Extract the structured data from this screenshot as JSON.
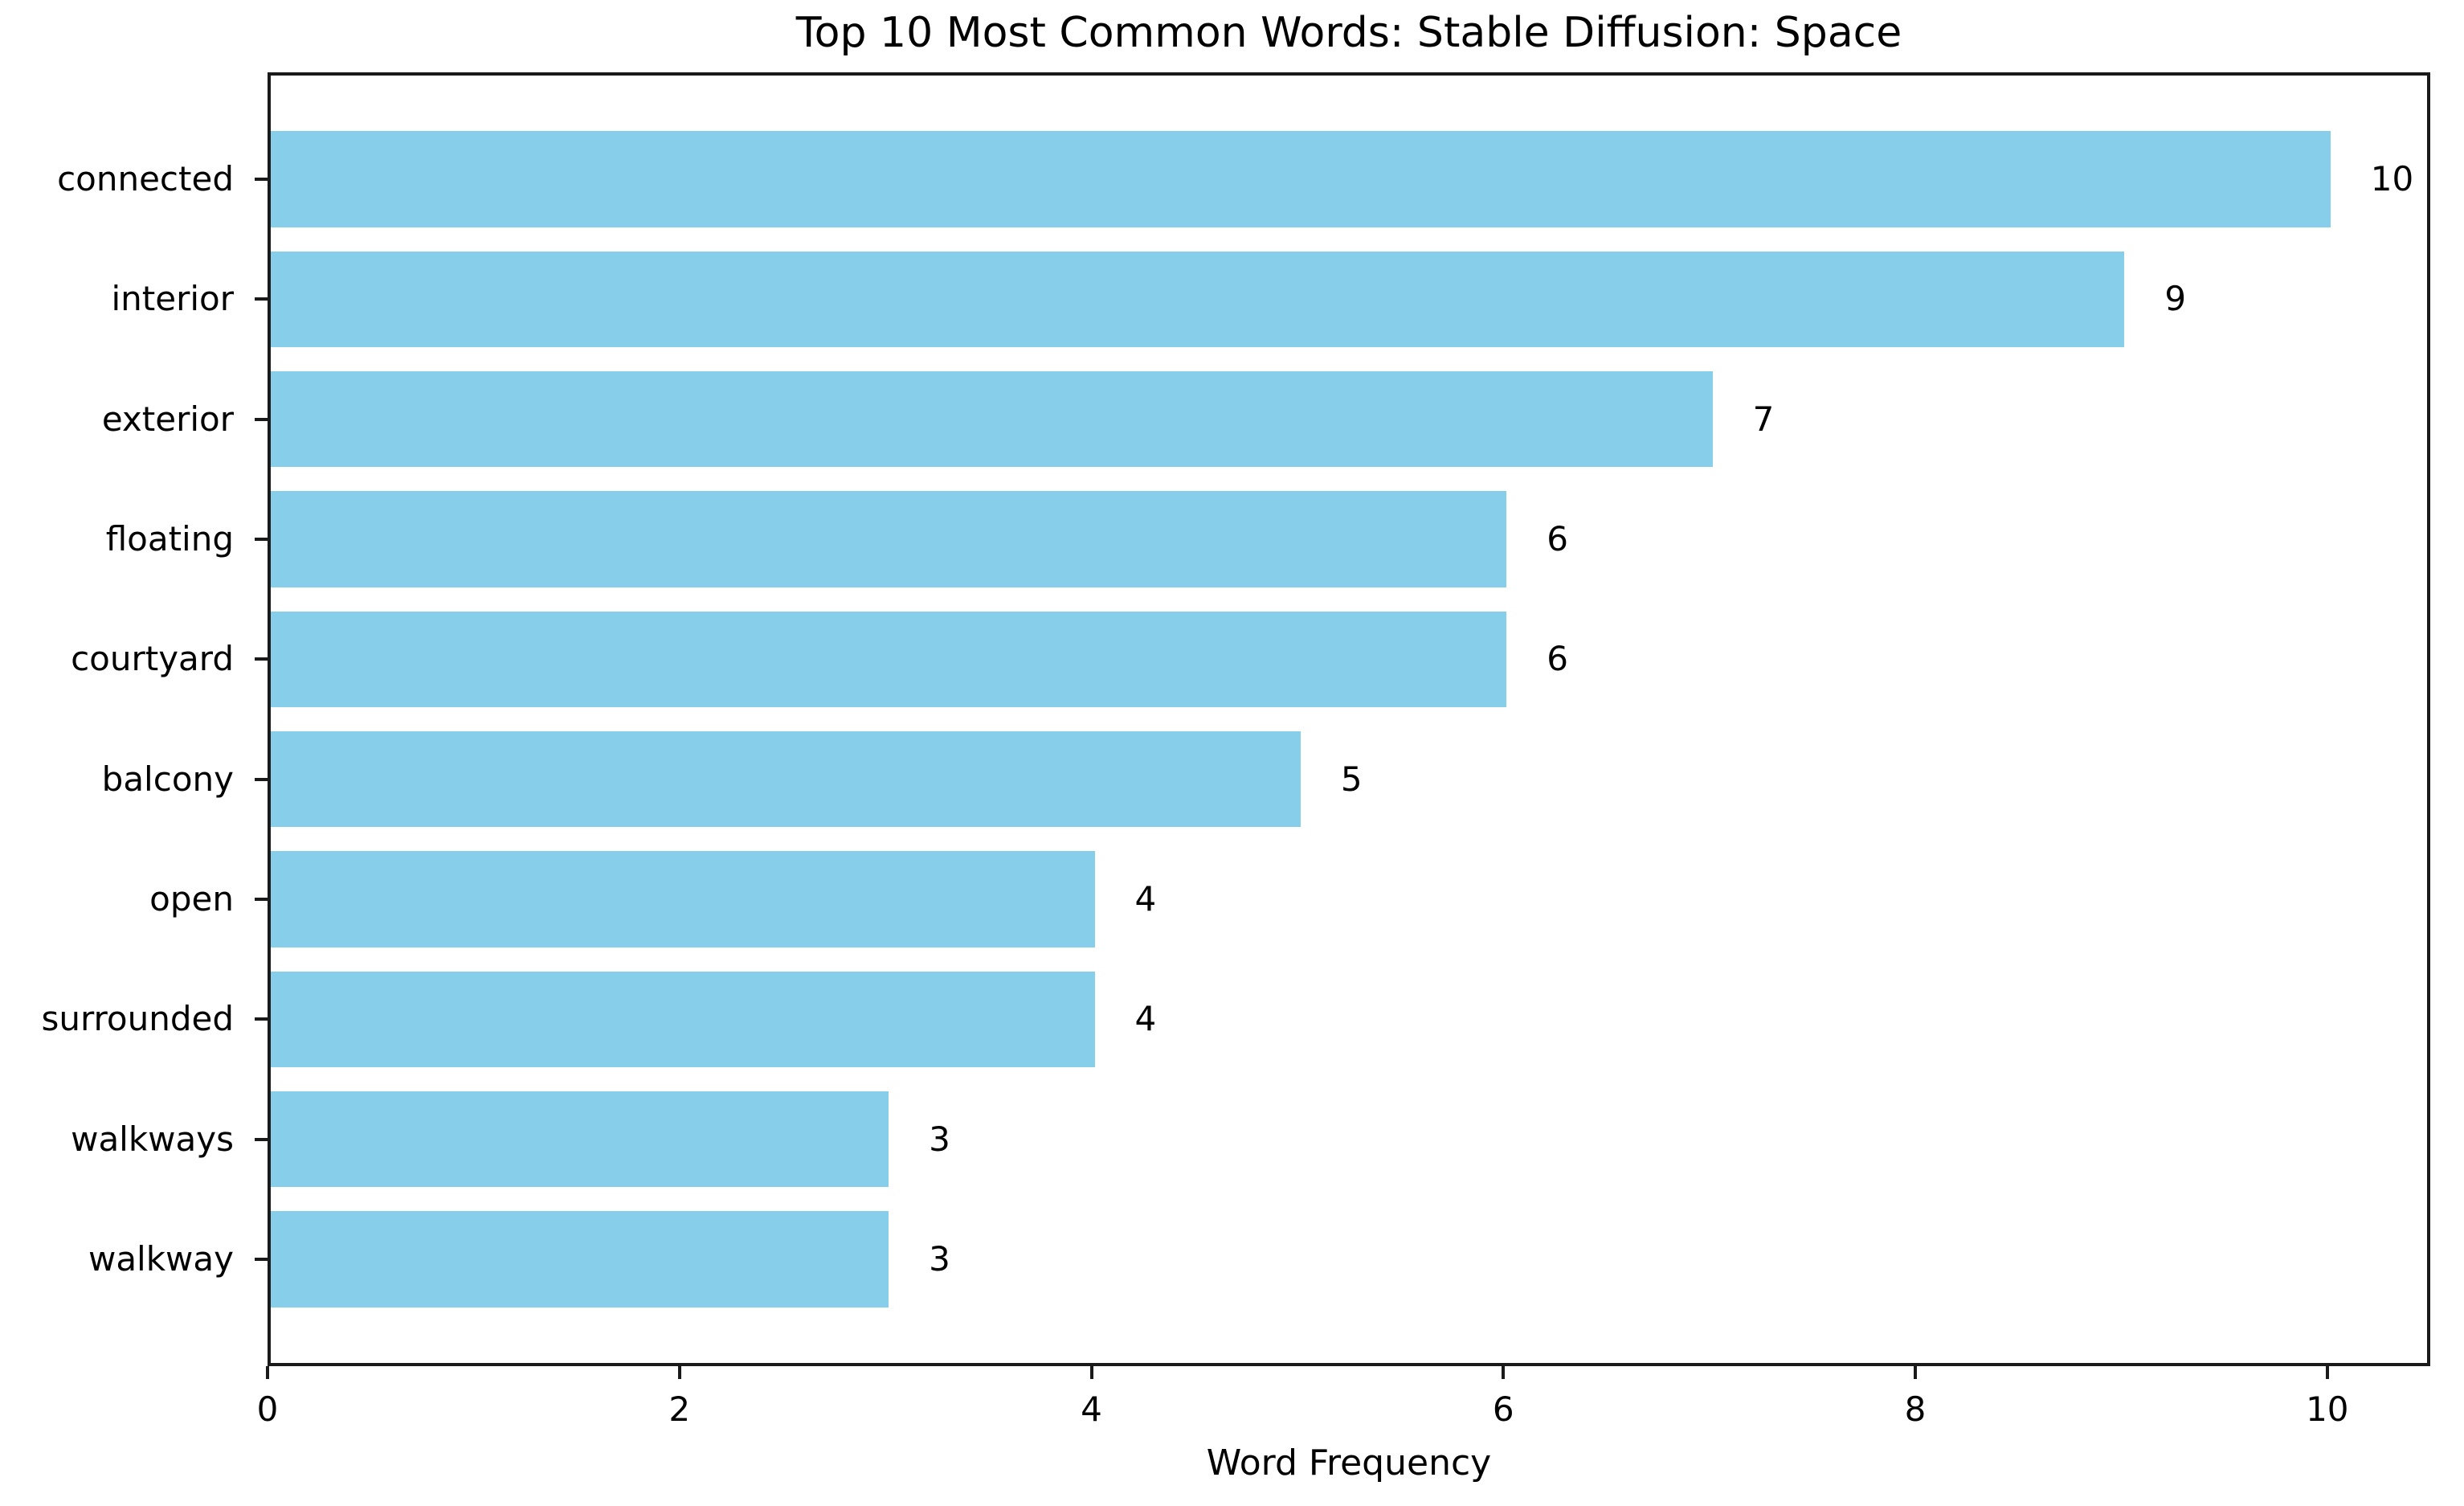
{
  "window": {
    "background": "#ffffff"
  },
  "chart_data": {
    "type": "bar",
    "orientation": "horizontal",
    "title": "Top 10 Most Common Words: Stable Diffusion: Space",
    "xlabel": "Word Frequency",
    "ylabel": "",
    "categories": [
      "connected",
      "interior",
      "exterior",
      "floating",
      "courtyard",
      "balcony",
      "open",
      "surrounded",
      "walkways",
      "walkway"
    ],
    "values": [
      10,
      9,
      7,
      6,
      6,
      5,
      4,
      4,
      3,
      3
    ],
    "value_labels": [
      "10",
      "9",
      "7",
      "6",
      "6",
      "5",
      "4",
      "4",
      "3",
      "3"
    ],
    "x_tick_labels": [
      "0",
      "2",
      "4",
      "6",
      "8",
      "10"
    ],
    "x_tick_values": [
      0,
      2,
      4,
      6,
      8,
      10
    ],
    "xlim": [
      0,
      10.5
    ],
    "bar_color": "#87CEEB",
    "text_color": "#000000",
    "spine_color": "#1a1a1a",
    "grid": false,
    "legend": "none",
    "bar_fraction": 0.8
  }
}
